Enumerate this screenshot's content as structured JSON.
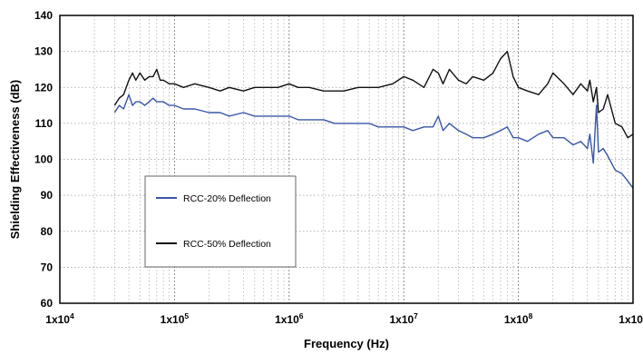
{
  "chart_data": {
    "type": "line",
    "xscale": "log",
    "xlim": [
      10000,
      1000000000
    ],
    "ylim": [
      60,
      140
    ],
    "xlabel": "Frequency (Hz)",
    "ylabel": "Shielding Effectiveness (dB)",
    "x_ticks": [
      {
        "value": 10000,
        "base": "1x10",
        "exp": "4"
      },
      {
        "value": 100000,
        "base": "1x10",
        "exp": "5"
      },
      {
        "value": 1000000,
        "base": "1x10",
        "exp": "6"
      },
      {
        "value": 10000000,
        "base": "1x10",
        "exp": "7"
      },
      {
        "value": 100000000,
        "base": "1x10",
        "exp": "8"
      },
      {
        "value": 1000000000,
        "base": "1x10",
        "exp": "9"
      }
    ],
    "y_ticks": [
      60,
      70,
      80,
      90,
      100,
      110,
      120,
      130,
      140
    ],
    "grid": "dotted",
    "legend_position": "left",
    "series": [
      {
        "name": "RCC-20% Deflection",
        "color": "#3a56a8",
        "x": [
          30000,
          33000,
          36000,
          40000,
          43000,
          46000,
          50000,
          55000,
          60000,
          65000,
          70000,
          75000,
          80000,
          90000,
          100000,
          120000,
          150000,
          200000,
          250000,
          300000,
          400000,
          500000,
          600000,
          800000,
          1000000,
          1200000,
          1500000,
          2000000,
          2500000,
          3000000,
          4000000,
          5000000,
          6000000,
          8000000,
          10000000,
          12000000,
          15000000,
          18000000,
          20000000,
          22000000,
          25000000,
          30000000,
          35000000,
          40000000,
          50000000,
          60000000,
          70000000,
          80000000,
          90000000,
          100000000,
          120000000,
          150000000,
          180000000,
          200000000,
          250000000,
          300000000,
          350000000,
          400000000,
          420000000,
          450000000,
          480000000,
          500000000,
          550000000,
          600000000,
          700000000,
          800000000,
          900000000,
          1000000000
        ],
        "y": [
          113,
          115,
          114,
          118,
          115,
          116,
          116,
          115,
          116,
          117,
          116,
          116,
          116,
          115,
          115,
          114,
          114,
          113,
          113,
          112,
          113,
          112,
          112,
          112,
          112,
          111,
          111,
          111,
          110,
          110,
          110,
          110,
          109,
          109,
          109,
          108,
          109,
          109,
          112,
          108,
          110,
          108,
          107,
          106,
          106,
          107,
          108,
          109,
          106,
          106,
          105,
          107,
          108,
          106,
          106,
          104,
          105,
          103,
          107,
          99,
          115,
          102,
          103,
          101,
          97,
          96,
          94,
          92
        ]
      },
      {
        "name": "RCC-50% Deflection",
        "color": "#111111",
        "x": [
          30000,
          33000,
          36000,
          40000,
          43000,
          46000,
          50000,
          55000,
          60000,
          65000,
          70000,
          75000,
          80000,
          90000,
          100000,
          120000,
          150000,
          200000,
          250000,
          300000,
          400000,
          500000,
          600000,
          800000,
          1000000,
          1200000,
          1500000,
          2000000,
          2500000,
          3000000,
          4000000,
          5000000,
          6000000,
          8000000,
          10000000,
          12000000,
          15000000,
          18000000,
          20000000,
          22000000,
          25000000,
          30000000,
          35000000,
          40000000,
          50000000,
          60000000,
          70000000,
          80000000,
          90000000,
          100000000,
          120000000,
          150000000,
          180000000,
          200000000,
          250000000,
          300000000,
          350000000,
          400000000,
          420000000,
          450000000,
          480000000,
          500000000,
          550000000,
          600000000,
          700000000,
          800000000,
          900000000,
          1000000000
        ],
        "y": [
          115,
          117,
          118,
          122,
          124,
          122,
          124,
          122,
          123,
          123,
          125,
          122,
          122,
          121,
          121,
          120,
          121,
          120,
          119,
          120,
          119,
          120,
          120,
          120,
          121,
          120,
          120,
          119,
          119,
          119,
          120,
          120,
          120,
          121,
          123,
          122,
          120,
          125,
          124,
          121,
          125,
          122,
          121,
          123,
          122,
          124,
          128,
          130,
          123,
          120,
          119,
          118,
          121,
          124,
          121,
          118,
          121,
          119,
          122,
          116,
          120,
          113,
          114,
          118,
          110,
          109,
          106,
          107
        ]
      }
    ]
  }
}
